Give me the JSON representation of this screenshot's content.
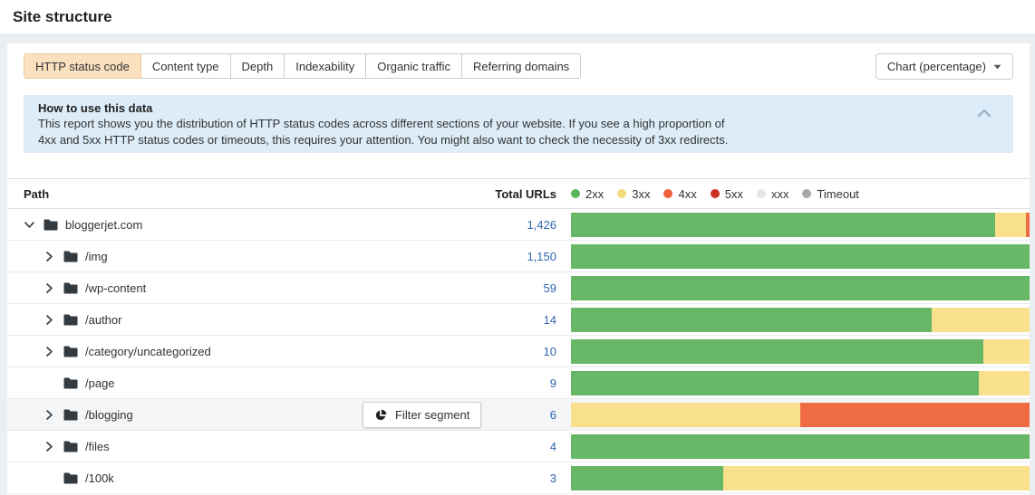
{
  "page": {
    "title": "Site structure"
  },
  "toolbar": {
    "tabs": [
      {
        "label": "HTTP status code",
        "active": true
      },
      {
        "label": "Content type",
        "active": false
      },
      {
        "label": "Depth",
        "active": false
      },
      {
        "label": "Indexability",
        "active": false
      },
      {
        "label": "Organic traffic",
        "active": false
      },
      {
        "label": "Referring domains",
        "active": false
      }
    ],
    "chart_selector_label": "Chart (percentage)"
  },
  "info_box": {
    "title": "How to use this data",
    "body_line1": "This report shows you the distribution of HTTP status codes across different sections of your website. If you see a high proportion of",
    "body_line2": "4xx and 5xx HTTP status codes or timeouts, this requires your attention. You might also want to check the necessity of 3xx redirects."
  },
  "table": {
    "columns": {
      "path": "Path",
      "total": "Total URLs"
    },
    "legend": [
      {
        "label": "2xx",
        "color": "#5cb65c"
      },
      {
        "label": "3xx",
        "color": "#f3da7e"
      },
      {
        "label": "4xx",
        "color": "#f0613a"
      },
      {
        "label": "5xx",
        "color": "#cc2d23"
      },
      {
        "label": "xxx",
        "color": "#e5e5e5"
      },
      {
        "label": "Timeout",
        "color": "#a8a8a8"
      }
    ],
    "rows": [
      {
        "name": "bloggerjet.com",
        "level": 0,
        "expandable": true,
        "expanded": true,
        "total": "1,426",
        "segments": [
          {
            "status": "2xx",
            "pct": 92.5
          },
          {
            "status": "3xx",
            "pct": 6.7
          },
          {
            "status": "4xx",
            "pct": 0.8
          }
        ]
      },
      {
        "name": "/img",
        "level": 1,
        "expandable": true,
        "expanded": false,
        "total": "1,150",
        "segments": [
          {
            "status": "2xx",
            "pct": 100
          }
        ]
      },
      {
        "name": "/wp-content",
        "level": 1,
        "expandable": true,
        "expanded": false,
        "total": "59",
        "segments": [
          {
            "status": "2xx",
            "pct": 100
          }
        ]
      },
      {
        "name": "/author",
        "level": 1,
        "expandable": true,
        "expanded": false,
        "total": "14",
        "segments": [
          {
            "status": "2xx",
            "pct": 78.6
          },
          {
            "status": "3xx",
            "pct": 21.4
          }
        ]
      },
      {
        "name": "/category/uncategorized",
        "level": 1,
        "expandable": true,
        "expanded": false,
        "total": "10",
        "segments": [
          {
            "status": "2xx",
            "pct": 90
          },
          {
            "status": "3xx",
            "pct": 10
          }
        ]
      },
      {
        "name": "/page",
        "level": 1,
        "expandable": false,
        "expanded": false,
        "total": "9",
        "segments": [
          {
            "status": "2xx",
            "pct": 88.9
          },
          {
            "status": "3xx",
            "pct": 11.1
          }
        ]
      },
      {
        "name": "/blogging",
        "level": 1,
        "expandable": true,
        "expanded": false,
        "total": "6",
        "hovered": true,
        "filter_button_label": "Filter segment",
        "segments": [
          {
            "status": "3xx",
            "pct": 50
          },
          {
            "status": "4xx",
            "pct": 50
          }
        ]
      },
      {
        "name": "/files",
        "level": 1,
        "expandable": true,
        "expanded": false,
        "total": "4",
        "segments": [
          {
            "status": "2xx",
            "pct": 100
          }
        ]
      },
      {
        "name": "/100k",
        "level": 1,
        "expandable": false,
        "expanded": false,
        "total": "3",
        "segments": [
          {
            "status": "2xx",
            "pct": 33.3
          },
          {
            "status": "3xx",
            "pct": 66.7
          }
        ]
      }
    ]
  },
  "status_colors": {
    "2xx": "#67b767",
    "3xx": "#f9e08d",
    "4xx": "#ef6c43",
    "5xx": "#cc2d23",
    "xxx": "#e5e5e5",
    "Timeout": "#a8a8a8"
  },
  "accent": {
    "active_tab_bg": "#fbe0c0",
    "link_blue": "#3168af",
    "info_box_bg": "#dcecf8"
  }
}
